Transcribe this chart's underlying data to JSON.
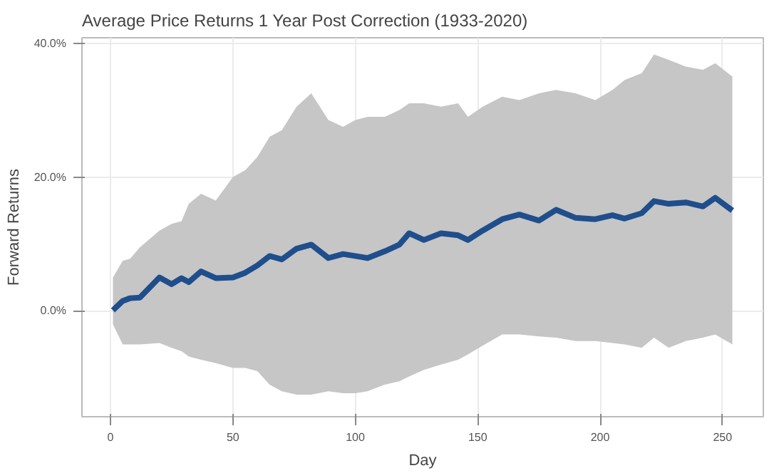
{
  "chart_data": {
    "type": "line",
    "title": "Average Price Returns 1 Year Post Correction (1933-2020)",
    "xlabel": "Day",
    "ylabel": "Forward Returns",
    "x": [
      1,
      5,
      8,
      12,
      20,
      25,
      29,
      32,
      37,
      43,
      50,
      55,
      60,
      65,
      70,
      76,
      82,
      89,
      95,
      100,
      105,
      112,
      118,
      122,
      128,
      135,
      142,
      146,
      152,
      160,
      167,
      175,
      182,
      190,
      198,
      205,
      210,
      217,
      222,
      228,
      235,
      242,
      247,
      254
    ],
    "series": [
      {
        "color": "#1f4e8c",
        "values": [
          0.1,
          1.5,
          1.9,
          2.0,
          5.0,
          4.0,
          4.9,
          4.3,
          5.9,
          4.9,
          5.0,
          5.7,
          6.8,
          8.2,
          7.7,
          9.3,
          9.9,
          7.9,
          8.5,
          8.2,
          7.9,
          8.9,
          9.9,
          11.6,
          10.6,
          11.6,
          11.3,
          10.6,
          12.0,
          13.7,
          14.4,
          13.5,
          15.1,
          13.9,
          13.7,
          14.3,
          13.8,
          14.6,
          16.4,
          16.0,
          16.2,
          15.6,
          16.9,
          15.0
        ],
        "lower": [
          -2,
          -5,
          -5,
          -5,
          -4.8,
          -5.5,
          -6,
          -6.8,
          -7.3,
          -7.8,
          -8.5,
          -8.5,
          -9,
          -11,
          -12,
          -12.5,
          -12.5,
          -12,
          -12.3,
          -12.3,
          -12,
          -11,
          -10.5,
          -9.8,
          -8.8,
          -8,
          -7.3,
          -6.5,
          -5.2,
          -3.5,
          -3.5,
          -3.8,
          -4,
          -4.5,
          -4.5,
          -4.8,
          -5,
          -5.5,
          -4,
          -5.5,
          -4.5,
          -4,
          -3.5,
          -5
        ],
        "upper": [
          5,
          7.5,
          7.8,
          9.5,
          12,
          13,
          13.4,
          16,
          17.5,
          16.5,
          20,
          21,
          23,
          26,
          27,
          30.5,
          32.5,
          28.5,
          27.5,
          28.5,
          29,
          29,
          30,
          31,
          31,
          30.5,
          31,
          29,
          30.5,
          32,
          31.5,
          32.5,
          33,
          32.5,
          31.5,
          33,
          34.5,
          35.5,
          38.3,
          37.5,
          36.5,
          36,
          37,
          35
        ]
      }
    ],
    "xlim": [
      -11.65,
      266.65
    ],
    "ylim": [
      -15.8,
      40.8
    ],
    "xticks": [
      0,
      50,
      100,
      150,
      200,
      250
    ],
    "yticks": [
      {
        "value": 0,
        "label": "0.0%"
      },
      {
        "value": 20,
        "label": "20.0%"
      },
      {
        "value": 40,
        "label": "40.0%"
      }
    ],
    "grid": true
  }
}
